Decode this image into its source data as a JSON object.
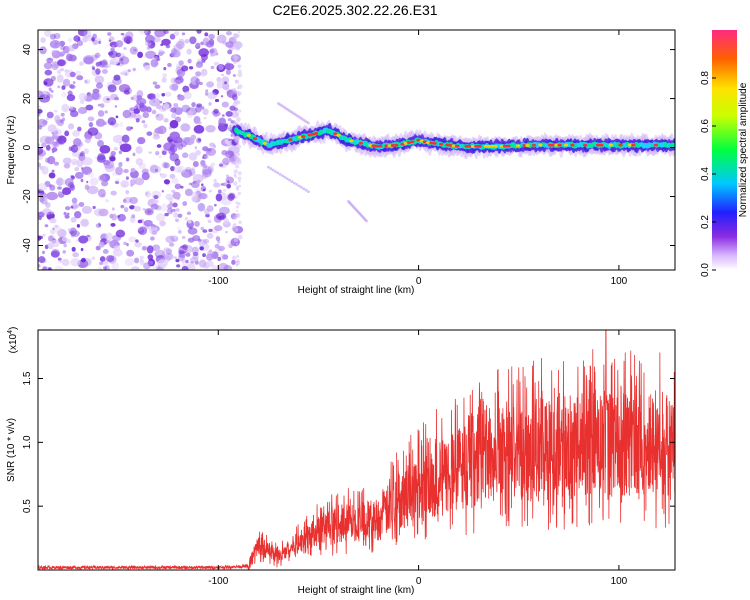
{
  "figure_title": "C2E6.2025.302.22.26.E31",
  "colors": {
    "trace": "#e8302f",
    "spectrogram_noise": "#8a2be2",
    "signal_core": "#ff2a2a"
  },
  "chart_data": [
    {
      "type": "heatmap",
      "title": "C2E6.2025.302.22.26.E31",
      "xlabel": "Height of straight line (km)",
      "ylabel": "Frequency (Hz)",
      "xlim": [
        -190,
        128
      ],
      "ylim": [
        -50,
        48
      ],
      "x_ticks": [
        -100,
        0,
        100
      ],
      "x_tick_labels": [
        "-100",
        "0",
        "100"
      ],
      "y_ticks": [
        -40,
        -20,
        0,
        20,
        40
      ],
      "y_tick_labels": [
        "-40",
        "-20",
        "0",
        "20",
        "40"
      ],
      "noise_region_x": [
        -190,
        -90
      ],
      "ridge": {
        "x": [
          -92,
          -85,
          -80,
          -75,
          -70,
          -60,
          -50,
          -45,
          -40,
          -35,
          -30,
          -25,
          -20,
          -10,
          0,
          5,
          20,
          40,
          60,
          80,
          100,
          128
        ],
        "frequency_hz": [
          7,
          5,
          3,
          1,
          2,
          4,
          6,
          7,
          5,
          3,
          2,
          1,
          0.5,
          1,
          3,
          2,
          0.5,
          0.5,
          1,
          1,
          1,
          1
        ]
      },
      "colorbar": {
        "label": "Normalized spectral amplitude",
        "range": [
          0,
          1
        ],
        "ticks": [
          0.0,
          0.2,
          0.4,
          0.6,
          0.8
        ],
        "tick_labels": [
          "0.0",
          "0.2",
          "0.4",
          "0.6",
          "0.8"
        ]
      }
    },
    {
      "type": "line",
      "xlabel": "Height of straight line (km)",
      "ylabel": "SNR (10 * v/v)",
      "scale_label": "(x10",
      "scale_exponent": "4",
      "scale_close": ")",
      "xlim": [
        -190,
        128
      ],
      "ylim": [
        0,
        18800
      ],
      "x_ticks": [
        -100,
        0,
        100
      ],
      "x_tick_labels": [
        "-100",
        "0",
        "100"
      ],
      "y_ticks": [
        5000,
        10000,
        15000
      ],
      "y_tick_labels": [
        "0.5",
        "1.0",
        "1.5"
      ],
      "trend": {
        "x": [
          -190,
          -100,
          -85,
          -80,
          -75,
          -70,
          -60,
          -50,
          -40,
          -30,
          -20,
          -10,
          0,
          10,
          20,
          30,
          40,
          50,
          60,
          70,
          80,
          90,
          100,
          110,
          128
        ],
        "y": [
          200,
          200,
          300,
          2000,
          1500,
          1000,
          2200,
          3000,
          3600,
          3800,
          4000,
          5500,
          6500,
          7000,
          8000,
          8800,
          9000,
          9300,
          9500,
          9600,
          9800,
          10000,
          9700,
          9900,
          9600
        ]
      },
      "peaks": [
        {
          "x": 93.5,
          "y": 18800
        },
        {
          "x": 60,
          "y": 14800
        },
        {
          "x": 54,
          "y": 14300
        },
        {
          "x": 44,
          "y": 13200
        },
        {
          "x": 94.5,
          "y": 5500
        },
        {
          "x": 92,
          "y": 4200
        },
        {
          "x": 9,
          "y": 12600
        },
        {
          "x": -11,
          "y": 9200
        },
        {
          "x": 73,
          "y": 13600
        }
      ]
    }
  ]
}
